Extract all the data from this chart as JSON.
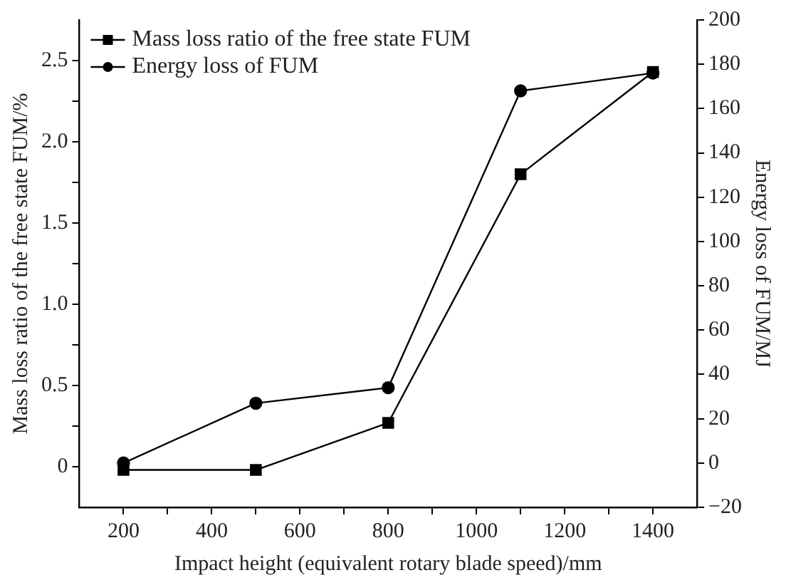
{
  "chart_data": {
    "type": "line",
    "xlabel": "Impact height (equivalent rotary blade speed)/mm",
    "ylabel": "Mass loss ratio of the free state FUM/%",
    "y2label": "Energy loss of FUM/MJ",
    "x": [
      200,
      500,
      800,
      1100,
      1400
    ],
    "series": [
      {
        "name": "Mass loss ratio of the free state FUM",
        "color": "#000000",
        "marker": "square",
        "values": [
          -0.02,
          -0.02,
          0.27,
          1.8,
          2.43
        ]
      },
      {
        "name": "Energy loss of FUM",
        "color": "#000000",
        "marker": "circle",
        "axis": "y2",
        "values": [
          0,
          27,
          34,
          168,
          176
        ]
      }
    ],
    "xlim": [
      100,
      1500
    ],
    "xticks": [
      200,
      {
        "value": 300,
        "label": null
      },
      400,
      {
        "value": 500,
        "label": null
      },
      600,
      {
        "value": 700,
        "label": null
      },
      800,
      {
        "value": 900,
        "label": null
      },
      1000,
      {
        "value": 1100,
        "label": null
      },
      1200,
      {
        "value": 1300,
        "label": null
      },
      1400
    ],
    "ylim": [
      -0.25,
      2.75
    ],
    "yticks": [
      {
        "value": 0,
        "label": "0"
      },
      {
        "value": 0.25,
        "label": null
      },
      {
        "value": 0.5,
        "label": "0.5"
      },
      {
        "value": 0.75,
        "label": null
      },
      {
        "value": 1,
        "label": "1.0"
      },
      {
        "value": 1.25,
        "label": null
      },
      {
        "value": 1.5,
        "label": "1.5"
      },
      {
        "value": 1.75,
        "label": null
      },
      {
        "value": 2,
        "label": "2.0"
      },
      {
        "value": 2.25,
        "label": null
      },
      {
        "value": 2.5,
        "label": "2.5"
      }
    ],
    "y2lim": [
      -20,
      200
    ],
    "y2ticks": [
      {
        "value": -20,
        "label": "−20"
      },
      0,
      20,
      40,
      60,
      80,
      100,
      120,
      140,
      160,
      180,
      200
    ],
    "grid": false,
    "legend": "top left",
    "line_style": "solid"
  }
}
